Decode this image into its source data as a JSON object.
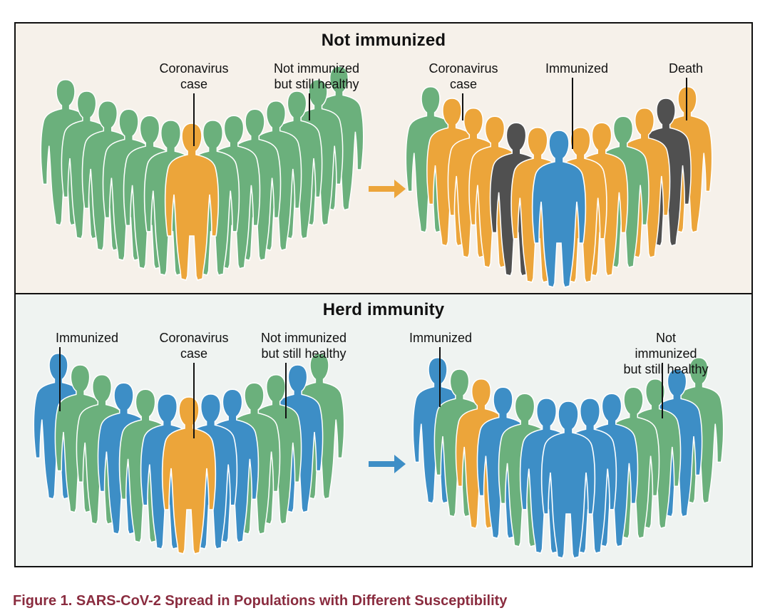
{
  "colors": {
    "healthy": "#6bb07c",
    "coronavirus_case": "#eca53a",
    "immunized": "#3d8ec6",
    "death": "#505050",
    "arrow_top": "#eca53a",
    "arrow_bottom": "#3d8ec6",
    "caption": "#8a2c3f"
  },
  "panels": {
    "top": {
      "title": "Not immunized",
      "left_labels": {
        "case": "Coronavirus\ncase",
        "healthy": "Not immunized\nbut still healthy"
      },
      "right_labels": {
        "case": "Coronavirus\ncase",
        "immunized": "Immunized",
        "death": "Death"
      },
      "left_crowd": [
        "healthy",
        "healthy",
        "healthy",
        "healthy",
        "healthy",
        "healthy",
        "coronavirus_case",
        "healthy",
        "healthy",
        "healthy",
        "healthy",
        "healthy",
        "healthy",
        "healthy"
      ],
      "right_crowd": [
        "healthy",
        "coronavirus_case",
        "coronavirus_case",
        "coronavirus_case",
        "death",
        "coronavirus_case",
        "immunized",
        "coronavirus_case",
        "coronavirus_case",
        "healthy",
        "coronavirus_case",
        "death",
        "coronavirus_case"
      ]
    },
    "bottom": {
      "title": "Herd immunity",
      "left_labels": {
        "immunized": "Immunized",
        "case": "Coronavirus\ncase",
        "healthy": "Not immunized\nbut still healthy"
      },
      "right_labels": {
        "immunized": "Immunized",
        "healthy": "Not immunized\nbut still healthy"
      },
      "left_crowd": [
        "immunized",
        "healthy",
        "healthy",
        "immunized",
        "healthy",
        "immunized",
        "coronavirus_case",
        "immunized",
        "immunized",
        "healthy",
        "healthy",
        "immunized",
        "healthy"
      ],
      "right_crowd": [
        "immunized",
        "healthy",
        "coronavirus_case",
        "immunized",
        "healthy",
        "immunized",
        "immunized",
        "immunized",
        "immunized",
        "healthy",
        "healthy",
        "immunized",
        "healthy"
      ]
    }
  },
  "caption": "Figure 1.  SARS-CoV-2 Spread in Populations with Different Susceptibility"
}
